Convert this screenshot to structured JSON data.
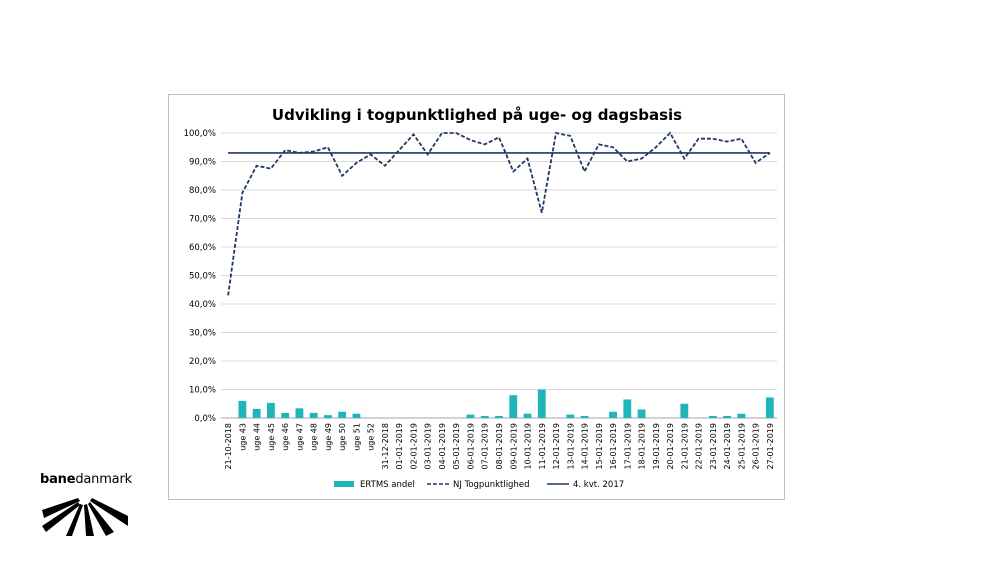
{
  "chart_data": {
    "type": "bar+line",
    "title": "Udvikling i togpunktlighed på uge- og dagsbasis",
    "categories": [
      "21-10-2018",
      "uge 43",
      "uge 44",
      "uge 45",
      "uge 46",
      "uge 47",
      "uge 48",
      "uge 49",
      "uge 50",
      "uge 51",
      "uge 52",
      "31-12-2018",
      "01-01-2019",
      "02-01-2019",
      "03-01-2019",
      "04-01-2019",
      "05-01-2019",
      "06-01-2019",
      "07-01-2019",
      "08-01-2019",
      "09-01-2019",
      "10-01-2019",
      "11-01-2019",
      "12-01-2019",
      "13-01-2019",
      "14-01-2019",
      "15-01-2019",
      "16-01-2019",
      "17-01-2019",
      "18-01-2019",
      "19-01-2019",
      "20-01-2019",
      "21-01-2019",
      "22-01-2019",
      "23-01-2019",
      "24-01-2019",
      "25-01-2019",
      "26-01-2019",
      "27-01-2019"
    ],
    "y_ticks": [
      "0,0%",
      "10,0%",
      "20,0%",
      "30,0%",
      "40,0%",
      "50,0%",
      "60,0%",
      "70,0%",
      "80,0%",
      "90,0%",
      "100,0%"
    ],
    "ylim": [
      0,
      100
    ],
    "grid": true,
    "legend_position": "bottom",
    "series": [
      {
        "name": "ERTMS andel",
        "kind": "bar",
        "color": "#1fb5b9",
        "values": [
          0,
          6.0,
          3.2,
          5.3,
          1.8,
          3.4,
          1.8,
          1.0,
          2.2,
          1.5,
          0,
          0,
          0,
          0,
          0,
          0,
          0,
          1.2,
          0.7,
          0.7,
          8.0,
          1.5,
          10.0,
          0,
          1.2,
          0.7,
          0,
          2.2,
          6.5,
          3.0,
          0,
          0,
          5.0,
          0,
          0.7,
          0.7,
          1.5,
          0,
          7.2
        ]
      },
      {
        "name": "NJ Togpunktlighed",
        "kind": "line-dashed",
        "color": "#1f3864",
        "values": [
          43,
          79,
          88.5,
          87.5,
          94,
          93,
          93.5,
          95,
          85,
          89.5,
          92.5,
          88.5,
          94,
          99.5,
          92.5,
          100,
          100,
          97.5,
          96,
          98.5,
          86.5,
          91,
          72,
          100,
          99,
          86.5,
          96,
          95,
          90,
          91,
          95,
          100,
          91,
          98,
          98,
          97,
          98,
          89.5,
          93
        ]
      },
      {
        "name": "4. kvt. 2017",
        "kind": "line",
        "color": "#1f3864",
        "values": [
          93,
          93,
          93,
          93,
          93,
          93,
          93,
          93,
          93,
          93,
          93,
          93,
          93,
          93,
          93,
          93,
          93,
          93,
          93,
          93,
          93,
          93,
          93,
          93,
          93,
          93,
          93,
          93,
          93,
          93,
          93,
          93,
          93,
          93,
          93,
          93,
          93,
          93,
          93
        ]
      }
    ]
  },
  "logo": {
    "text_bold": "bane",
    "text_regular": "danmark",
    "icon": "railway-tracks-icon"
  }
}
